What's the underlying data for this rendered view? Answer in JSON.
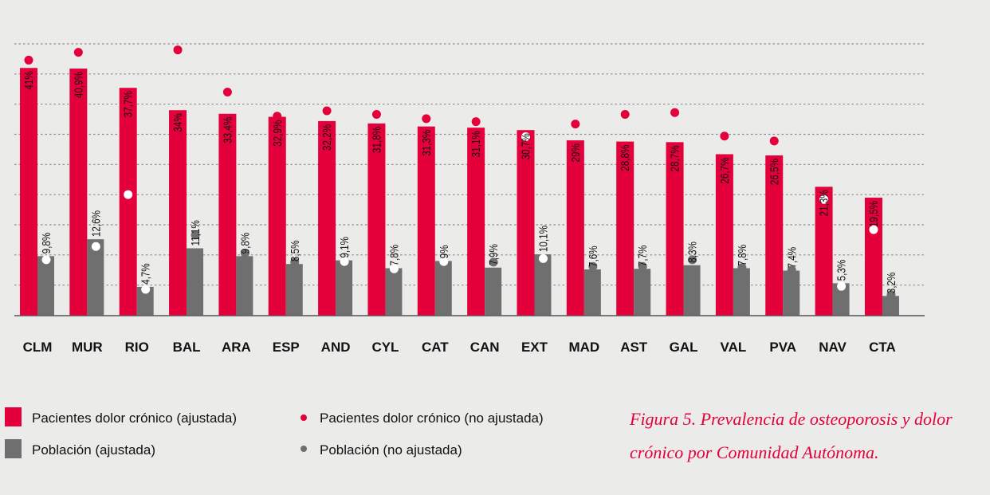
{
  "chart_data": {
    "type": "bar",
    "title": "",
    "caption": [
      "Figura 5. Prevalencia de osteoporosis y dolor",
      "crónico por Comunidad Autónoma."
    ],
    "xlabel": "",
    "ylabel": "",
    "ylim": [
      0,
      45
    ],
    "grid": {
      "horizontal": true,
      "style": "dotted",
      "step": 5
    },
    "y_tick_labels_shown": false,
    "legend_position": "bottom",
    "categories": [
      "CLM",
      "MUR",
      "RIO",
      "BAL",
      "ARA",
      "ESP",
      "AND",
      "CYL",
      "CAT",
      "CAN",
      "EXT",
      "MAD",
      "AST",
      "GAL",
      "VAL",
      "PVA",
      "NAV",
      "CTA"
    ],
    "series": [
      {
        "name": "Pacientes dolor crónico (ajustada)",
        "kind": "bar",
        "color": "#e4003a",
        "values": [
          41,
          40.9,
          37.7,
          34,
          33.4,
          32.9,
          32.2,
          31.8,
          31.3,
          31.1,
          30.7,
          29,
          28.8,
          28.7,
          26.7,
          26.5,
          21.3,
          19.5
        ],
        "labels": [
          "41%",
          "40,9%",
          "37,7%",
          "34%",
          "33,4%",
          "32,9%",
          "32,2%",
          "31,8%",
          "31,3%",
          "31,1%",
          "30,7%",
          "29%",
          "28,8%",
          "28,7%",
          "26,7%",
          "26,5%",
          "21,3%",
          "19,5%"
        ]
      },
      {
        "name": "Población (ajustada)",
        "kind": "bar",
        "color": "#6f6f6f",
        "values": [
          9.8,
          12.6,
          4.7,
          11.1,
          9.8,
          8.5,
          9.1,
          7.8,
          9,
          7.9,
          10.1,
          7.6,
          7.7,
          8.3,
          7.8,
          7.4,
          5.3,
          3.2
        ],
        "labels": [
          "9,8%",
          "12,6%",
          "4,7%",
          "11,1%",
          "9,8%",
          "8,5%",
          "9,1%",
          "7,8%",
          "9%",
          "7,9%",
          "10,1%",
          "7,6%",
          "7,7%",
          "8,3%",
          "7,8%",
          "7,4%",
          "5,3%",
          "3,2%"
        ]
      },
      {
        "name": "Pacientes dolor crónico (no ajustada)",
        "kind": "dot",
        "color": "#e4003a",
        "values": [
          42.3,
          43.6,
          20.0,
          44.0,
          37.0,
          33.0,
          33.9,
          33.3,
          32.6,
          32.1,
          29.6,
          31.7,
          33.3,
          33.6,
          29.7,
          28.9,
          19.2,
          14.2
        ]
      },
      {
        "name": "Población (no ajustada)",
        "kind": "dot",
        "color": "#6f6f6f",
        "values": [
          9.2,
          11.4,
          4.3,
          13.3,
          10.3,
          8.8,
          8.9,
          7.7,
          8.9,
          8.8,
          9.4,
          8.1,
          8.1,
          9.2,
          7.9,
          7.5,
          4.8,
          3.4
        ]
      }
    ]
  },
  "legend": {
    "items": [
      {
        "label": "Pacientes dolor crónico (ajustada)",
        "symbol": "square",
        "color": "#e4003a"
      },
      {
        "label": "Población (ajustada)",
        "symbol": "square",
        "color": "#6f6f6f"
      },
      {
        "label": "Pacientes dolor crónico (no ajustada)",
        "symbol": "dot",
        "color": "#e4003a"
      },
      {
        "label": "Población (no ajustada)",
        "symbol": "dot",
        "color": "#6f6f6f"
      }
    ]
  }
}
